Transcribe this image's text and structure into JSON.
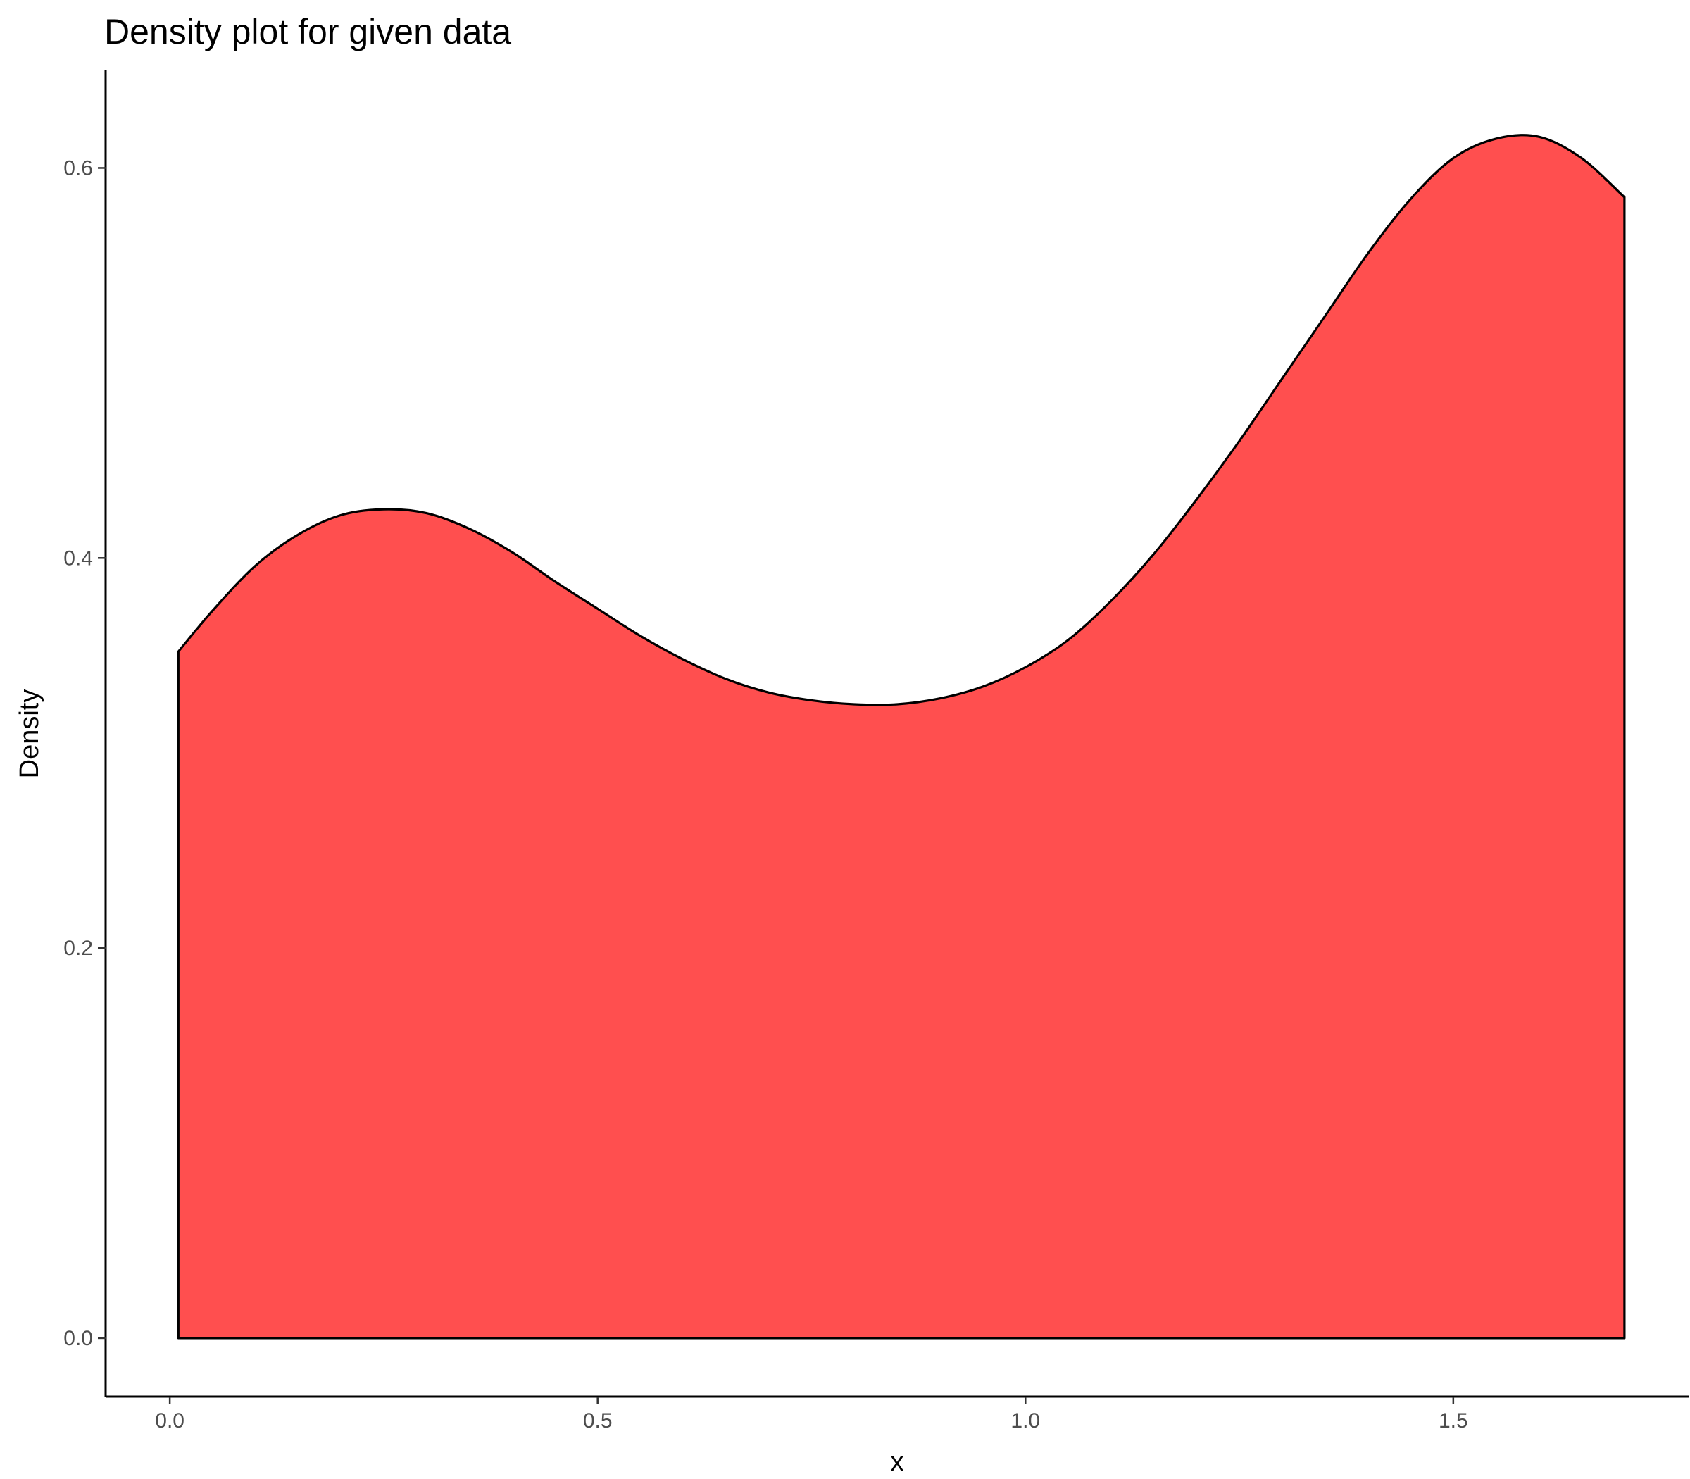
{
  "chart_data": {
    "type": "area",
    "title": "Density plot for given data",
    "xlabel": "x",
    "ylabel": "Density",
    "xlim": [
      -0.075,
      1.775
    ],
    "ylim": [
      -0.03,
      0.65
    ],
    "x_ticks": [
      0.0,
      0.5,
      1.0,
      1.5
    ],
    "x_tick_labels": [
      "0.0",
      "0.5",
      "1.0",
      "1.5"
    ],
    "y_ticks": [
      0.0,
      0.2,
      0.4,
      0.6
    ],
    "y_tick_labels": [
      "0.0",
      "0.2",
      "0.4",
      "0.6"
    ],
    "grid": false,
    "fill_color": "#ff4f4f",
    "line_color": "#000000",
    "series": [
      {
        "x": [
          0.01,
          0.05,
          0.1,
          0.15,
          0.2,
          0.25,
          0.3,
          0.35,
          0.4,
          0.45,
          0.5,
          0.55,
          0.6,
          0.65,
          0.7,
          0.75,
          0.8,
          0.85,
          0.9,
          0.95,
          1.0,
          1.05,
          1.1,
          1.15,
          1.2,
          1.25,
          1.3,
          1.35,
          1.4,
          1.45,
          1.5,
          1.55,
          1.6,
          1.65,
          1.7
        ],
        "y": [
          0.352,
          0.373,
          0.396,
          0.412,
          0.422,
          0.425,
          0.423,
          0.415,
          0.403,
          0.388,
          0.374,
          0.36,
          0.348,
          0.338,
          0.331,
          0.327,
          0.325,
          0.325,
          0.328,
          0.334,
          0.344,
          0.358,
          0.378,
          0.402,
          0.43,
          0.46,
          0.492,
          0.524,
          0.556,
          0.584,
          0.605,
          0.615,
          0.616,
          0.605,
          0.585
        ]
      }
    ]
  }
}
